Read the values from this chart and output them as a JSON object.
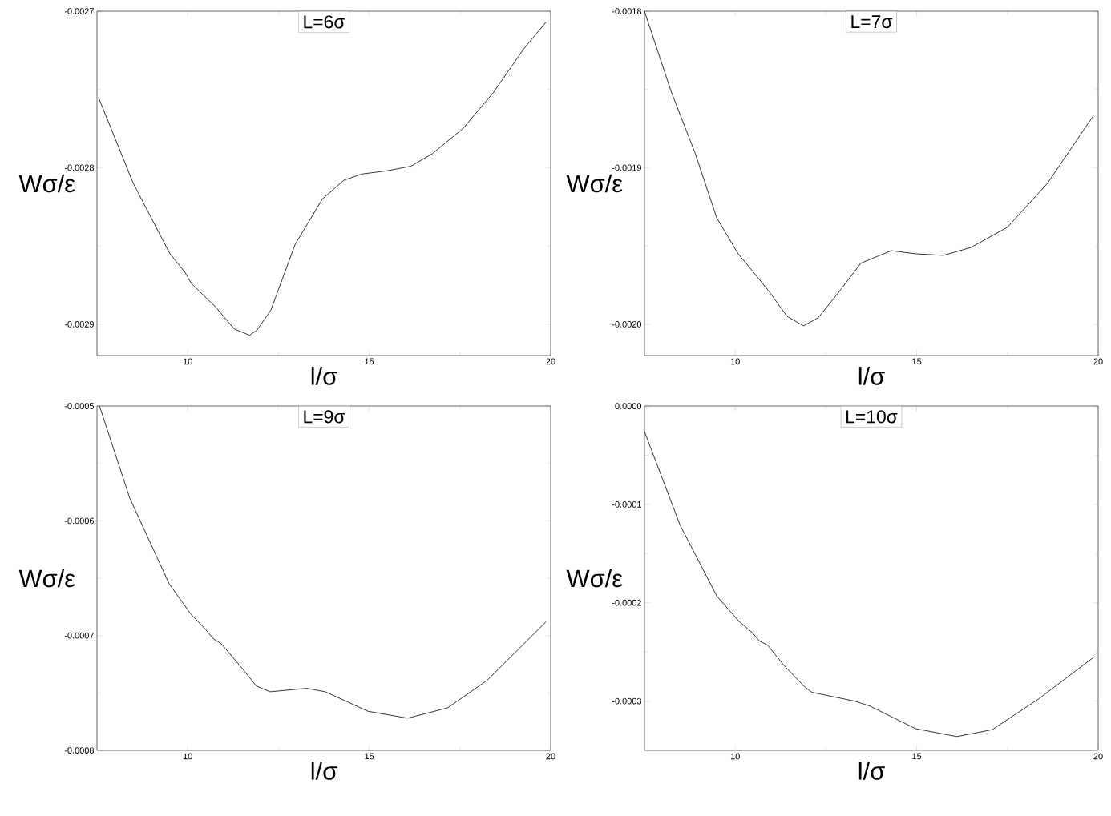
{
  "chart_data": [
    {
      "type": "line",
      "title": "L=6σ",
      "xlabel": "l/σ",
      "ylabel": "Wσ/ε",
      "color": "#000000",
      "x": [
        7.54,
        8.5,
        9.51,
        9.93,
        10.1,
        10.77,
        11.28,
        11.7,
        11.9,
        12.29,
        12.96,
        13.71,
        14.3,
        14.8,
        15.48,
        16.15,
        16.74,
        17.58,
        18.42,
        19.26,
        19.87
      ],
      "values": [
        -0.002755,
        -0.00281,
        -0.002855,
        -0.002867,
        -0.002874,
        -0.002889,
        -0.002903,
        -0.002907,
        -0.002904,
        -0.002891,
        -0.002849,
        -0.00282,
        -0.002808,
        -0.002804,
        -0.002802,
        -0.002799,
        -0.002791,
        -0.002775,
        -0.002752,
        -0.002724,
        -0.002707
      ],
      "xlim": [
        7.5,
        20
      ],
      "ylim": [
        -0.00292,
        -0.0027
      ],
      "xticks": [
        10,
        15,
        20
      ],
      "yticks": [
        {
          "value": -0.0027,
          "label": "-0.0027"
        },
        {
          "value": -0.0028,
          "label": "-0.0028"
        },
        {
          "value": -0.0029,
          "label": "-0.0029"
        }
      ]
    },
    {
      "type": "line",
      "title": "L=7σ",
      "xlabel": "l/σ",
      "ylabel": "Wσ/ε",
      "color": "#000000",
      "x": [
        7.5,
        8.23,
        8.9,
        9.49,
        10.08,
        10.51,
        10.93,
        11.43,
        11.88,
        12.28,
        12.87,
        13.46,
        14.3,
        14.97,
        15.73,
        16.49,
        17.5,
        18.6,
        19.86
      ],
      "values": [
        -0.0018,
        -0.001851,
        -0.001891,
        -0.001932,
        -0.001955,
        -0.001967,
        -0.001979,
        -0.001995,
        -0.002001,
        -0.001996,
        -0.001979,
        -0.001961,
        -0.001953,
        -0.001955,
        -0.001956,
        -0.001951,
        -0.001938,
        -0.00191,
        -0.001867
      ],
      "xlim": [
        7.5,
        20
      ],
      "ylim": [
        -0.00202,
        -0.0018
      ],
      "xticks": [
        10,
        15,
        20
      ],
      "yticks": [
        {
          "value": -0.0018,
          "label": "-0.0018"
        },
        {
          "value": -0.0019,
          "label": "-0.0019"
        },
        {
          "value": -0.002,
          "label": "-0.0020"
        }
      ]
    },
    {
      "type": "line",
      "title": "L=9σ",
      "xlabel": "l/σ",
      "ylabel": "Wσ/ε",
      "color": "#000000",
      "x": [
        7.57,
        8.4,
        9.49,
        10.08,
        10.5,
        10.71,
        10.92,
        11.51,
        11.89,
        12.27,
        13.28,
        13.79,
        14.97,
        16.06,
        17.16,
        18.25,
        19.87
      ],
      "values": [
        -0.0005,
        -0.00058,
        -0.000655,
        -0.000681,
        -0.000695,
        -0.000703,
        -0.000707,
        -0.000729,
        -0.000744,
        -0.000749,
        -0.000746,
        -0.000749,
        -0.000766,
        -0.000772,
        -0.000763,
        -0.000739,
        -0.000688
      ],
      "xlim": [
        7.5,
        20
      ],
      "ylim": [
        -0.0008,
        -0.0005
      ],
      "xticks": [
        10,
        15,
        20
      ],
      "yticks": [
        {
          "value": -0.0005,
          "label": "-0.0005"
        },
        {
          "value": -0.0006,
          "label": "-0.0006"
        },
        {
          "value": -0.0007,
          "label": "-0.0007"
        },
        {
          "value": -0.0008,
          "label": "-0.0008"
        }
      ]
    },
    {
      "type": "line",
      "title": "L=10σ",
      "xlabel": "l/σ",
      "ylabel": "Wσ/ε",
      "color": "#000000",
      "x": [
        7.5,
        8.48,
        9.49,
        10.08,
        10.46,
        10.67,
        10.89,
        11.35,
        11.9,
        12.11,
        13.29,
        13.71,
        14.97,
        16.11,
        17.08,
        18.35,
        19.89
      ],
      "values": [
        -2.6e-05,
        -0.000121,
        -0.000193,
        -0.000218,
        -0.00023,
        -0.000239,
        -0.000243,
        -0.000264,
        -0.000285,
        -0.000291,
        -0.0003,
        -0.000305,
        -0.000328,
        -0.000336,
        -0.000329,
        -0.000298,
        -0.000255
      ],
      "xlim": [
        7.5,
        20
      ],
      "ylim": [
        -0.00035,
        0
      ],
      "xticks": [
        10,
        15,
        20
      ],
      "yticks": [
        {
          "value": 0,
          "label": "0.0000"
        },
        {
          "value": -0.0001,
          "label": "-0.0001"
        },
        {
          "value": -0.0002,
          "label": "-0.0002"
        },
        {
          "value": -0.0003,
          "label": "-0.0003"
        }
      ]
    }
  ]
}
